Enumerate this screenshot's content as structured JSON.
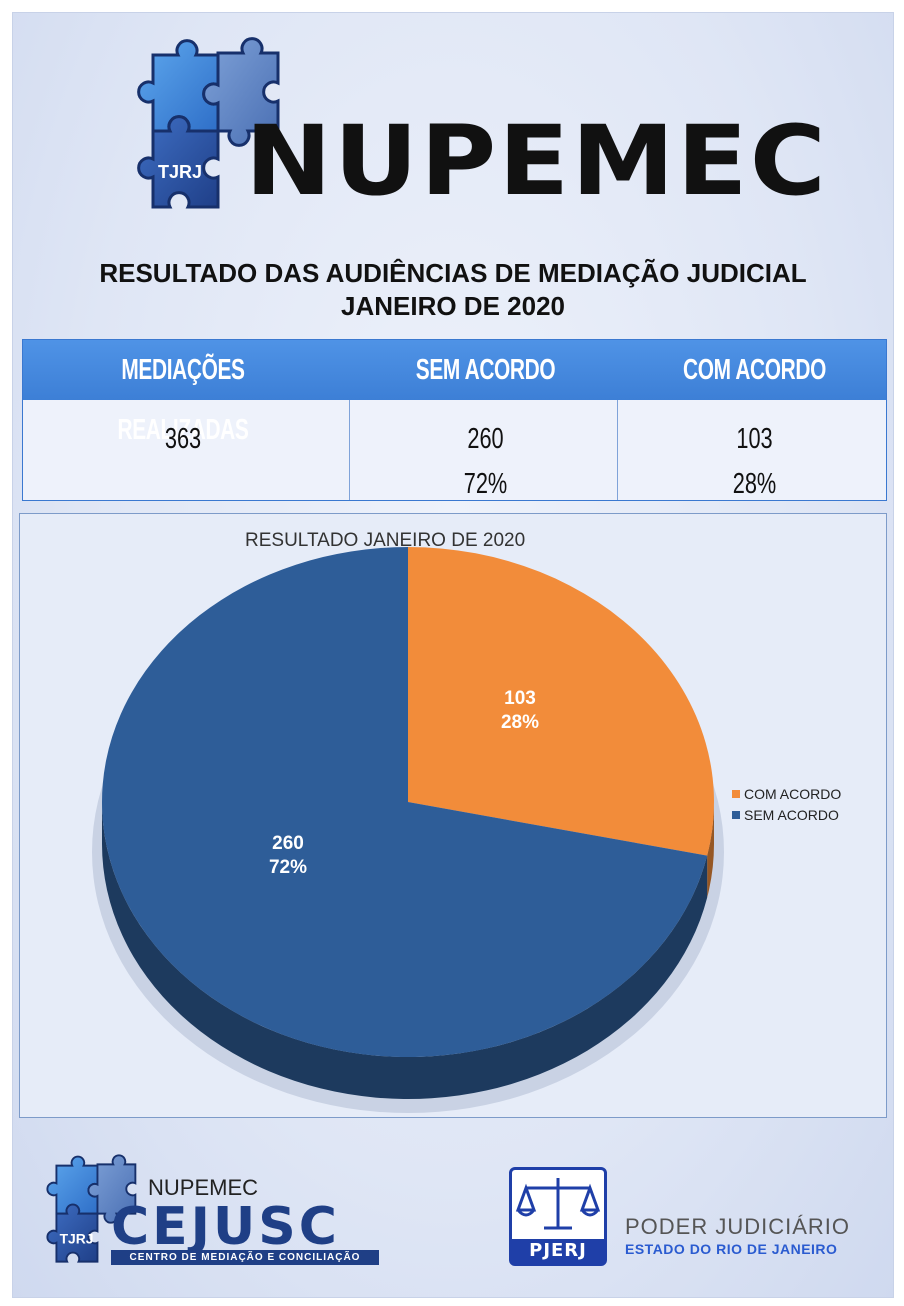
{
  "header": {
    "logo_badge": "TJRJ",
    "brand": "NUPEMEC",
    "title_line1": "RESULTADO DAS AUDIÊNCIAS DE MEDIAÇÃO JUDICIAL",
    "title_line2": "JANEIRO DE 2020"
  },
  "summary_table": {
    "columns": [
      "MEDIAÇÕES REALIZADAS",
      "SEM ACORDO",
      "COM ACORDO"
    ],
    "counts": [
      "363",
      "260",
      "103"
    ],
    "percents": [
      "",
      "72%",
      "28%"
    ]
  },
  "colors": {
    "com_acordo": "#f28c3a",
    "sem_acordo": "#2e5d98",
    "header_blue": "#3d7fd6"
  },
  "chart_data": {
    "type": "pie",
    "title": "RESULTADO JANEIRO DE 2020",
    "legend_position": "right",
    "slices": [
      {
        "name": "COM ACORDO",
        "value": 103,
        "label_value": "103",
        "label_pct": "28%",
        "color": "#f28c3a"
      },
      {
        "name": "SEM ACORDO",
        "value": 260,
        "label_value": "260",
        "label_pct": "72%",
        "color": "#2e5d98"
      }
    ]
  },
  "footer": {
    "logo_badge": "TJRJ",
    "nupemec": "NUPEMEC",
    "cejusc": "CEJUSC",
    "cejusc_sub": "CENTRO DE MEDIAÇÃO E CONCILIAÇÃO",
    "pjerj": "PJERJ",
    "poder": "PODER JUDICIÁRIO",
    "estado": "ESTADO DO RIO DE JANEIRO"
  }
}
